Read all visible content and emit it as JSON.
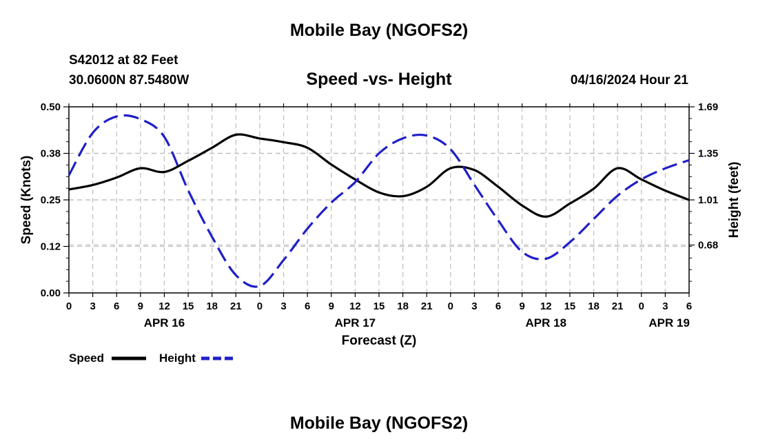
{
  "title": "Mobile Bay (NGOFS2)",
  "footer_title": "Mobile Bay (NGOFS2)",
  "station": "S42012 at 82 Feet",
  "coords": "30.0600N  87.5480W",
  "datetime": "04/16/2024 Hour 21",
  "colors": {
    "speed": "#000000",
    "height": "#1f1fc8",
    "grid": "#bdbdbd"
  },
  "chart_data": {
    "type": "line",
    "title": "Speed -vs- Height",
    "xlabel": "Forecast (Z)",
    "ylabel_left": "Speed (Knots)",
    "ylabel_right": "Height (feet)",
    "x_range_hours": [
      0,
      78
    ],
    "ylim_left": [
      0,
      0.5
    ],
    "ylim_right": [
      0.33,
      1.69
    ],
    "yticks_left": [
      "0.00",
      "0.12",
      "0.25",
      "0.38",
      "0.50"
    ],
    "yticks_left_values": [
      0,
      0.125,
      0.25,
      0.375,
      0.5
    ],
    "yticks_right": [
      "0.68",
      "1.01",
      "1.35",
      "1.69"
    ],
    "yticks_right_values": [
      0.68,
      1.01,
      1.35,
      1.69
    ],
    "xtick_labels": [
      "0",
      "3",
      "6",
      "9",
      "12",
      "15",
      "18",
      "21",
      "0",
      "3",
      "6",
      "9",
      "12",
      "15",
      "18",
      "21",
      "0",
      "3",
      "6",
      "9",
      "12",
      "15",
      "18",
      "21",
      "0",
      "3",
      "6"
    ],
    "date_labels": [
      {
        "hour": 12,
        "text": "APR 16"
      },
      {
        "hour": 36,
        "text": "APR 17"
      },
      {
        "hour": 60,
        "text": "APR 18"
      },
      {
        "hour": 75.5,
        "text": "APR 19"
      }
    ],
    "legend": [
      "Speed",
      "Height"
    ],
    "series": [
      {
        "name": "Speed",
        "axis": "left",
        "style": "solid",
        "x": [
          0,
          3,
          6,
          9,
          12,
          15,
          18,
          21,
          24,
          27,
          30,
          33,
          36,
          39,
          42,
          45,
          48,
          51,
          54,
          57,
          60,
          63,
          66,
          69,
          72,
          75,
          78
        ],
        "y": [
          0.278,
          0.29,
          0.31,
          0.335,
          0.325,
          0.355,
          0.39,
          0.425,
          0.415,
          0.405,
          0.39,
          0.345,
          0.305,
          0.27,
          0.26,
          0.285,
          0.335,
          0.33,
          0.285,
          0.235,
          0.205,
          0.24,
          0.28,
          0.335,
          0.305,
          0.275,
          0.25
        ]
      },
      {
        "name": "Height",
        "axis": "right",
        "style": "dashed",
        "x": [
          0,
          3,
          6,
          9,
          12,
          15,
          18,
          21,
          24,
          27,
          30,
          33,
          36,
          39,
          42,
          45,
          48,
          51,
          54,
          57,
          60,
          63,
          66,
          69,
          72,
          75,
          78
        ],
        "y": [
          1.19,
          1.5,
          1.62,
          1.6,
          1.47,
          1.08,
          0.74,
          0.46,
          0.38,
          0.57,
          0.8,
          0.99,
          1.14,
          1.35,
          1.46,
          1.48,
          1.38,
          1.12,
          0.86,
          0.63,
          0.58,
          0.7,
          0.87,
          1.04,
          1.16,
          1.24,
          1.3
        ]
      }
    ]
  }
}
